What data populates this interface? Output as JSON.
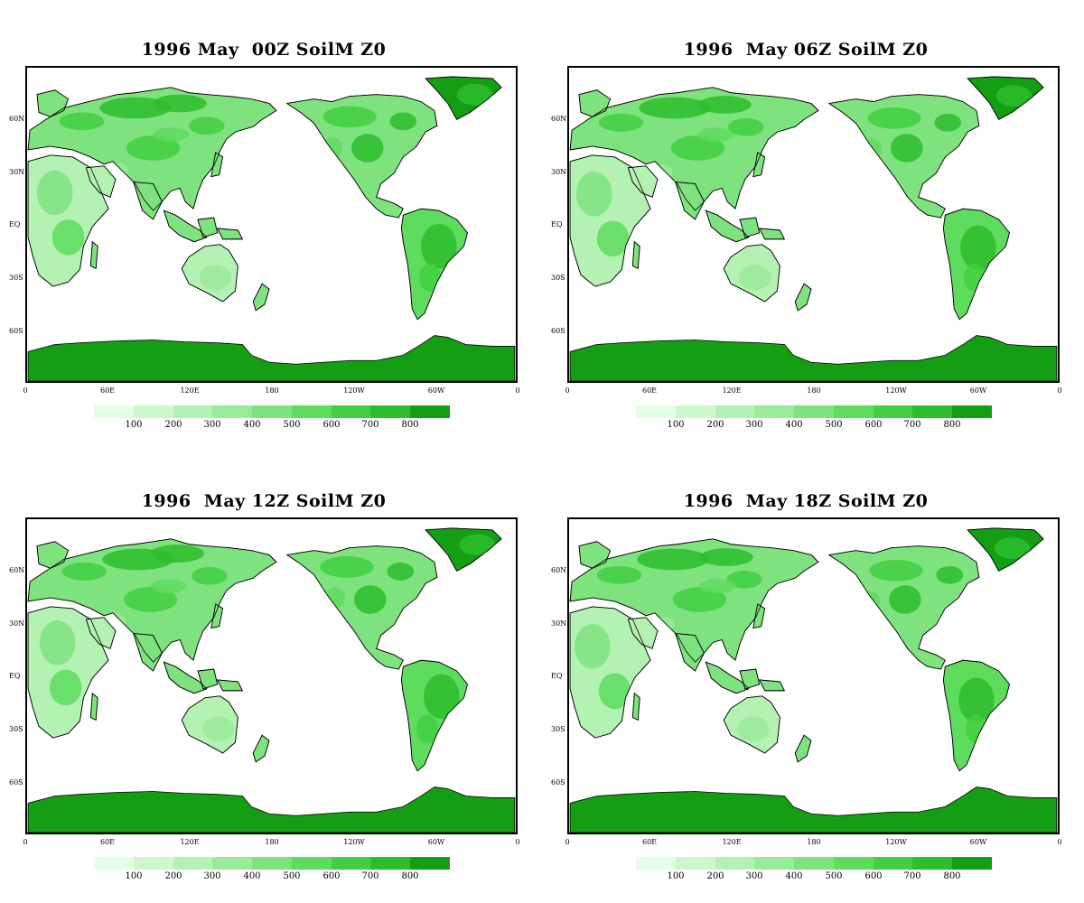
{
  "panels": [
    {
      "title": "1996 May  00Z SoilM Z0",
      "variant": "00"
    },
    {
      "title": "1996  May 06Z SoilM Z0",
      "variant": "06"
    },
    {
      "title": "1996  May 12Z SoilM Z0",
      "variant": "12"
    },
    {
      "title": "1996  May 18Z SoilM Z0",
      "variant": "18"
    }
  ],
  "lat_labels": [
    "60N",
    "30N",
    "EQ",
    "30S",
    "60S"
  ],
  "lon_labels": [
    "0",
    "60E",
    "120E",
    "180",
    "120W",
    "60W",
    "0"
  ],
  "colorbar": {
    "labels": [
      "100",
      "200",
      "300",
      "400",
      "500",
      "600",
      "700",
      "800"
    ],
    "colors": [
      "#e6fde6",
      "#ccf8cc",
      "#b3f2b3",
      "#99eb99",
      "#7ee37e",
      "#5edc5e",
      "#42cf42",
      "#2dbd2d",
      "#139e13"
    ]
  }
}
